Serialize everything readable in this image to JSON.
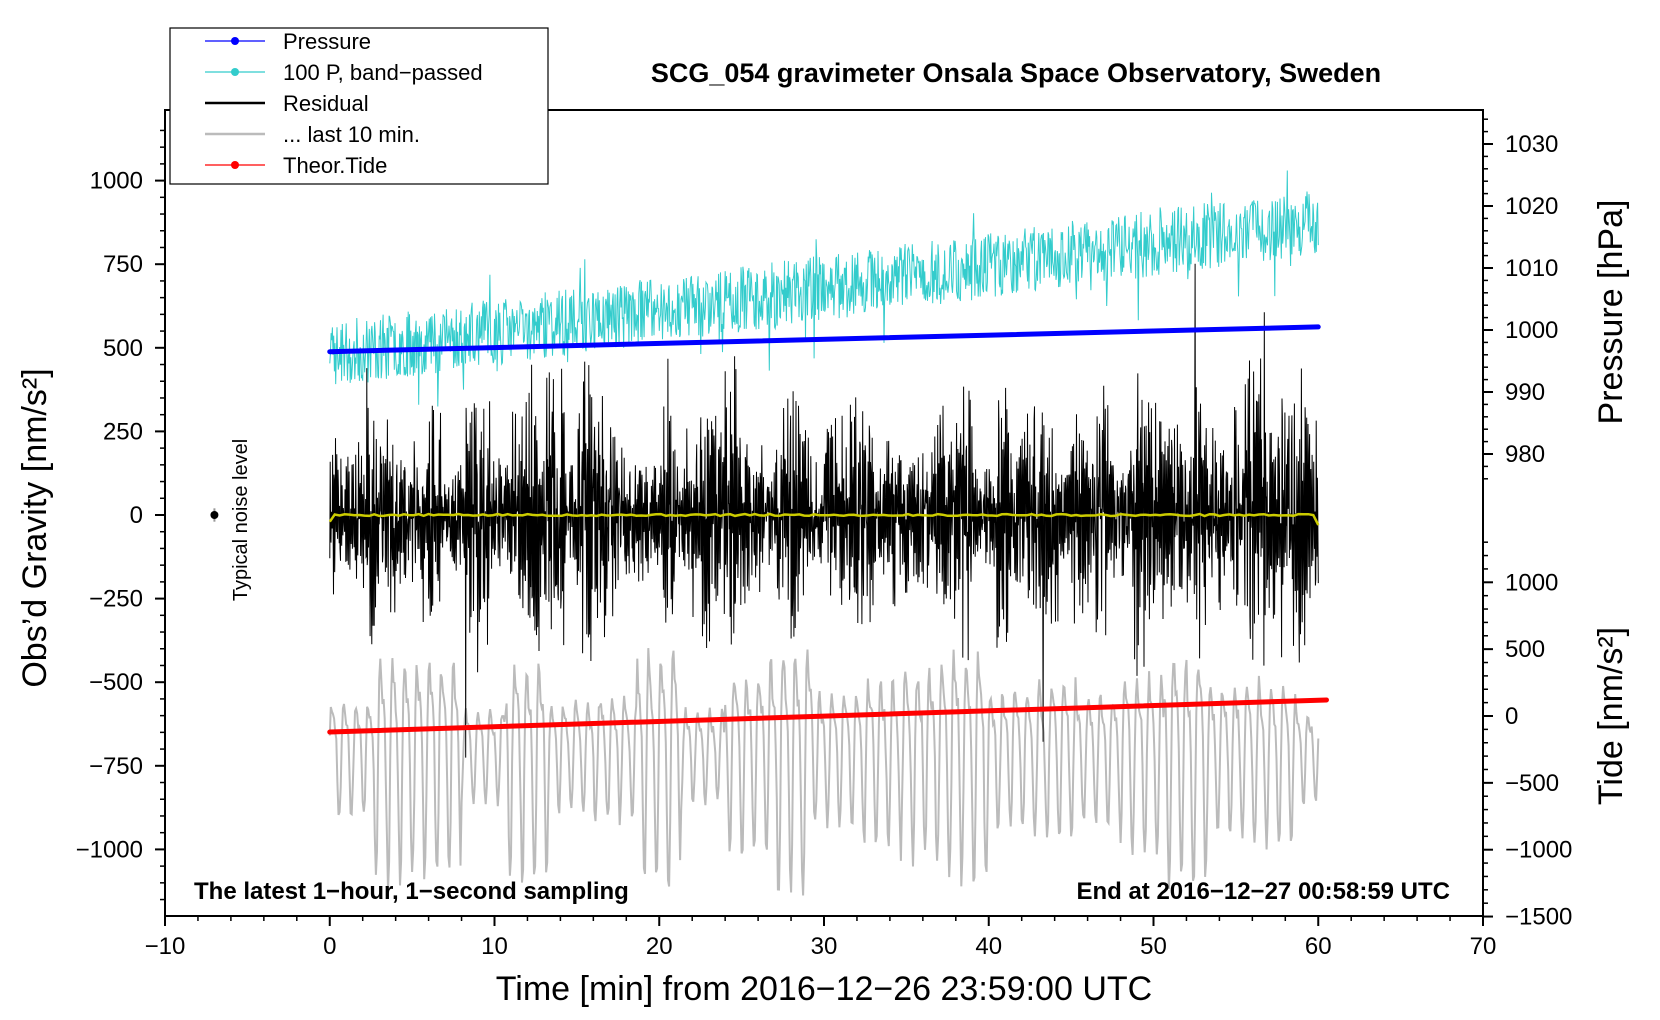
{
  "chart_data": {
    "type": "line",
    "title": "SCG_054 gravimeter Onsala Space Observatory, Sweden",
    "xlabel": "Time [min] from 2016−12−26 23:59:00 UTC",
    "ylabel_left": "Obs’d Gravity [nm/s²]",
    "ylabel_right_top": "Pressure [hPa]",
    "ylabel_right_bottom": "Tide [nm/s²]",
    "xlim": [
      -10,
      70
    ],
    "ylim_left": [
      -1200,
      1200
    ],
    "ylim_pressure": [
      970,
      1035
    ],
    "ylim_tide": [
      -1500,
      1500
    ],
    "x_ticks": [
      -10,
      0,
      10,
      20,
      30,
      40,
      50,
      60,
      70
    ],
    "x_tick_labels": [
      "−10",
      "0",
      "10",
      "20",
      "30",
      "40",
      "50",
      "60",
      "70"
    ],
    "y_ticks_left": [
      1000,
      750,
      500,
      250,
      0,
      -250,
      -500,
      -750,
      -1000
    ],
    "y_tick_labels_left": [
      "1000",
      "750",
      "500",
      "250",
      "0",
      "−250",
      "−500",
      "−750",
      "−1000"
    ],
    "pressure_ticks": [
      1030,
      1020,
      1010,
      1000,
      990,
      980
    ],
    "pressure_tick_labels": [
      "1030",
      "1020",
      "1010",
      "1000",
      "990",
      "980"
    ],
    "tide_ticks": [
      1000,
      500,
      0,
      -500,
      -1000,
      -1500
    ],
    "tide_tick_labels": [
      "1000",
      "500",
      "0",
      "−500",
      "−1000",
      "−1500"
    ],
    "legend": [
      {
        "name": "Pressure",
        "color": "#0000ff",
        "marker": true
      },
      {
        "name": "100 P, band−passed",
        "color": "#33cccc",
        "marker": true
      },
      {
        "name": "Residual",
        "color": "#000000",
        "marker": false
      },
      {
        "name": "... last 10 min.",
        "color": "#bbbbbb",
        "marker": false
      },
      {
        "name": "Theor.Tide",
        "color": "#ff0000",
        "marker": true
      }
    ],
    "series": [
      {
        "name": "Pressure",
        "axis": "pressure",
        "color": "#0000ff",
        "x": [
          0,
          60
        ],
        "values": [
          996.5,
          1000.5
        ]
      },
      {
        "name": "100 P, band−passed",
        "axis": "left",
        "color": "#33cccc",
        "x_range": [
          0,
          60
        ],
        "trend": [
          480,
          880
        ],
        "amplitude": 110
      },
      {
        "name": "Residual",
        "axis": "left",
        "color": "#000000",
        "x_range": [
          0,
          60
        ],
        "trend": [
          0,
          0
        ],
        "amplitude": 320
      },
      {
        "name": "... last 10 min.",
        "axis": "left",
        "color": "#bbbbbb",
        "x_range": [
          0,
          60
        ],
        "trend": [
          -700,
          -700
        ],
        "amplitude": 320
      },
      {
        "name": "Theor.Tide",
        "axis": "tide",
        "color": "#ff0000",
        "x": [
          0,
          60.5
        ],
        "values": [
          -120,
          120
        ]
      },
      {
        "name": "Smoothed",
        "axis": "left",
        "color": "#cccc00",
        "x": [
          0,
          60
        ],
        "values": [
          0,
          0
        ]
      }
    ],
    "noise_indicator": {
      "label": "Typical noise level",
      "x": -7,
      "y": 0,
      "error": 20
    },
    "annotations": {
      "left": "The latest 1−hour, 1−second sampling",
      "right": "End at 2016−12−27 00:58:59 UTC"
    }
  },
  "colors": {
    "pressure": "#0000ff",
    "bandpass": "#33cccc",
    "residual": "#000000",
    "last10": "#bbbbbb",
    "tide": "#ff0000",
    "smooth": "#cccc00"
  }
}
